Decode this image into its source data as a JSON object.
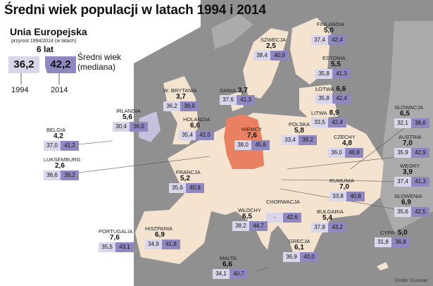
{
  "title": "Średni wiek populacji w latach 1994 i 2014",
  "eu": {
    "name": "Unia Europejska",
    "subtitle": "przyrost 1994/2014 (w latach)",
    "delta": "6 lat",
    "v1994": "36,2",
    "v2014": "42,2",
    "legend_line1": "Średni wiek",
    "legend_line2": "(mediana)",
    "year1": "1994",
    "year2": "2014"
  },
  "source": "Źródło: Eurostat",
  "colors": {
    "sea": "#909090",
    "land_eu": "#f3e3cf",
    "land_other": "#ababab",
    "germany": "#e98060",
    "ireland": "#c7c0dc",
    "box_1994": "#dad6ea",
    "box_2014": "#8f87bf"
  },
  "countries": [
    {
      "name": "SZWECJA",
      "delta": "2,5",
      "v1994": "38,4",
      "v2014": "40,9"
    },
    {
      "name": "FINLANDIA",
      "delta": "5,0",
      "v1994": "37,4",
      "v2014": "42,4"
    },
    {
      "name": "ESTONIA",
      "delta": "5,5",
      "v1994": "35,8",
      "v2014": "41,3"
    },
    {
      "name": "ŁOTWA",
      "delta": "6,6",
      "v1994": "35,8",
      "v2014": "42,4"
    },
    {
      "name": "LITWA",
      "delta": "8,9",
      "v1994": "33,5",
      "v2014": "42,4"
    },
    {
      "name": "DANIA",
      "delta": "3,7",
      "v1994": "37,6",
      "v2014": "41,3"
    },
    {
      "name": "W. BRYTANIA",
      "delta": "3,7",
      "v1994": "36,2",
      "v2014": "39,9"
    },
    {
      "name": "IRLANDIA",
      "delta": "5,6",
      "v1994": "30,4",
      "v2014": "36,0"
    },
    {
      "name": "HOLANDIA",
      "delta": "6,6",
      "v1994": "35,4",
      "v2014": "42,0"
    },
    {
      "name": "BELGIA",
      "delta": "4,2",
      "v1994": "37,0",
      "v2014": "41,2"
    },
    {
      "name": "LUKSEMBURG",
      "delta": "2,6",
      "v1994": "36,6",
      "v2014": "39,2"
    },
    {
      "name": "NIEMCY",
      "delta": "7,6",
      "v1994": "38,0",
      "v2014": "45,6"
    },
    {
      "name": "POLSKA",
      "delta": "5,8",
      "v1994": "33,4",
      "v2014": "39,2"
    },
    {
      "name": "CZECHY",
      "delta": "4,8",
      "v1994": "36,0",
      "v2014": "40,8"
    },
    {
      "name": "SŁOWACJA",
      "delta": "6,5",
      "v1994": "32,1",
      "v2014": "38,6"
    },
    {
      "name": "AUSTRIA",
      "delta": "7,0",
      "v1994": "35,9",
      "v2014": "42,9"
    },
    {
      "name": "WĘGRY",
      "delta": "3,9",
      "v1994": "37,4",
      "v2014": "41,3"
    },
    {
      "name": "SŁOWENIA",
      "delta": "6,9",
      "v1994": "35,6",
      "v2014": "42,5"
    },
    {
      "name": "RUMUNIA",
      "delta": "7,0",
      "v1994": "33,8",
      "v2014": "40,8"
    },
    {
      "name": "FRANCJA",
      "delta": "5,2",
      "v1994": "35,6",
      "v2014": "40,8"
    },
    {
      "name": "CHORWACJA",
      "delta": "",
      "v1994": "-",
      "v2014": "42,6"
    },
    {
      "name": "WŁOCHY",
      "delta": "6,5",
      "v1994": "38,2",
      "v2014": "44,7"
    },
    {
      "name": "BUŁGARIA",
      "delta": "5,4",
      "v1994": "37,8",
      "v2014": "43,2"
    },
    {
      "name": "PORTUGALIA",
      "delta": "7,6",
      "v1994": "35,5",
      "v2014": "43,1"
    },
    {
      "name": "HISZPANIA",
      "delta": "6,9",
      "v1994": "34,9",
      "v2014": "41,8"
    },
    {
      "name": "GRECJA",
      "delta": "6,1",
      "v1994": "36,9",
      "v2014": "43,0"
    },
    {
      "name": "MALTA",
      "delta": "6,6",
      "v1994": "34,1",
      "v2014": "40,7"
    },
    {
      "name": "CYPR",
      "delta": "5,0",
      "v1994": "31,8",
      "v2014": "36,8"
    }
  ]
}
